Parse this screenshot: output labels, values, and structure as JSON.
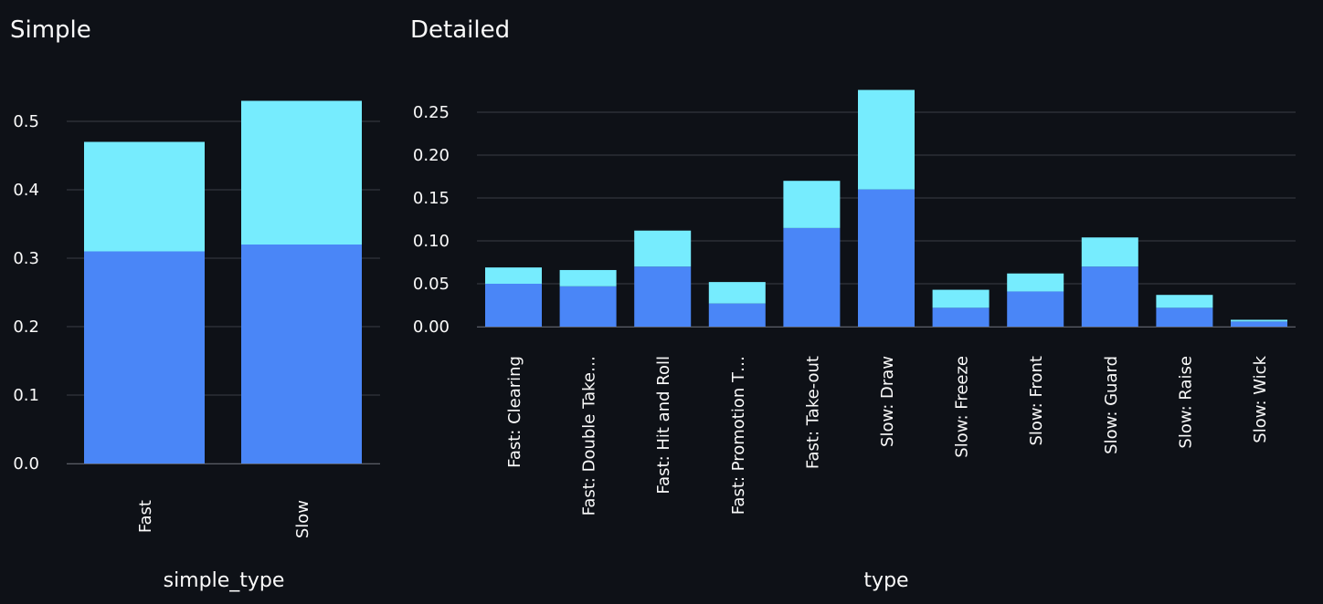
{
  "chart_data": [
    {
      "type": "bar",
      "title": "Simple",
      "xlabel": "simple_type",
      "ylabel": "",
      "stacked": true,
      "categories": [
        "Fast",
        "Slow"
      ],
      "series": [
        {
          "values": [
            0.31,
            0.32
          ],
          "color": "#4a86f7"
        },
        {
          "values": [
            0.16,
            0.21
          ],
          "color": "#76ecfe"
        }
      ],
      "yticks": [
        "0.0",
        "0.1",
        "0.2",
        "0.3",
        "0.4",
        "0.5"
      ],
      "ylim": [
        0,
        0.55
      ],
      "grid": true
    },
    {
      "type": "bar",
      "title": "Detailed",
      "xlabel": "type",
      "ylabel": "",
      "stacked": true,
      "categories": [
        "Fast: Clearing",
        "Fast: Double Take…",
        "Fast: Hit and Roll",
        "Fast: Promotion T…",
        "Fast: Take-out",
        "Slow: Draw",
        "Slow: Freeze",
        "Slow: Front",
        "Slow: Guard",
        "Slow: Raise",
        "Slow: Wick"
      ],
      "series": [
        {
          "values": [
            0.05,
            0.047,
            0.07,
            0.027,
            0.115,
            0.16,
            0.022,
            0.041,
            0.07,
            0.022,
            0.006
          ],
          "color": "#4a86f7"
        },
        {
          "values": [
            0.019,
            0.019,
            0.042,
            0.025,
            0.055,
            0.116,
            0.021,
            0.021,
            0.034,
            0.015,
            0.002
          ],
          "color": "#76ecfe"
        }
      ],
      "yticks": [
        "0.00",
        "0.05",
        "0.10",
        "0.15",
        "0.20",
        "0.25"
      ],
      "ylim": [
        0,
        0.275
      ],
      "grid": true
    }
  ]
}
